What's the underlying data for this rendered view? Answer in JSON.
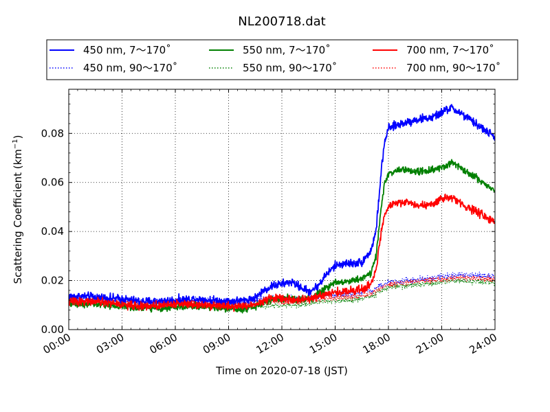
{
  "chart_data": {
    "type": "line",
    "title": "NL200718.dat",
    "xlabel": "Time on 2020-07-18 (JST)",
    "ylabel_main": "Scattering Coefficient (km",
    "ylabel_sup": "−1",
    "ylabel_close": ")",
    "x_unit": "hour",
    "xlim": [
      0,
      24
    ],
    "ylim": [
      0.0,
      0.098
    ],
    "x_ticks": [
      0,
      3,
      6,
      9,
      12,
      15,
      18,
      21,
      24
    ],
    "x_tick_labels": [
      "00:00",
      "03:00",
      "06:00",
      "09:00",
      "12:00",
      "15:00",
      "18:00",
      "21:00",
      "24:00"
    ],
    "y_ticks": [
      0.0,
      0.02,
      0.04,
      0.06,
      0.08
    ],
    "y_tick_labels": [
      "0.00",
      "0.02",
      "0.04",
      "0.06",
      "0.08"
    ],
    "grid": true,
    "legend_position": "top",
    "series": [
      {
        "name": "450 nm, 7～170˚",
        "color": "#0000ff",
        "style": "solid",
        "noise": 0.0016,
        "x": [
          0,
          1,
          2,
          3,
          4,
          5,
          6,
          7,
          8,
          9,
          10,
          10.5,
          11,
          11.5,
          12,
          12.5,
          13,
          13.5,
          14,
          14.5,
          15,
          15.5,
          16,
          16.5,
          17,
          17.3,
          17.6,
          17.8,
          18,
          18.5,
          19,
          19.5,
          20,
          20.5,
          21,
          21.5,
          22,
          22.5,
          23,
          23.5,
          24
        ],
        "y": [
          0.0135,
          0.0135,
          0.013,
          0.0125,
          0.0115,
          0.0115,
          0.012,
          0.0125,
          0.012,
          0.0115,
          0.012,
          0.013,
          0.016,
          0.018,
          0.0185,
          0.0195,
          0.0175,
          0.0155,
          0.0175,
          0.0225,
          0.026,
          0.027,
          0.027,
          0.0275,
          0.032,
          0.04,
          0.065,
          0.077,
          0.082,
          0.0835,
          0.0845,
          0.0855,
          0.086,
          0.0865,
          0.0885,
          0.0905,
          0.0885,
          0.086,
          0.0835,
          0.081,
          0.0785
        ]
      },
      {
        "name": "550 nm, 7～170˚",
        "color": "#008000",
        "style": "solid",
        "noise": 0.0013,
        "x": [
          0,
          1,
          2,
          3,
          4,
          5,
          6,
          7,
          8,
          9,
          10,
          10.5,
          11,
          11.5,
          12,
          12.5,
          13,
          13.5,
          14,
          14.5,
          15,
          15.5,
          16,
          16.5,
          17,
          17.3,
          17.6,
          17.8,
          18,
          18.5,
          19,
          19.5,
          20,
          20.5,
          21,
          21.5,
          22,
          22.5,
          23,
          23.5,
          24
        ],
        "y": [
          0.0105,
          0.0105,
          0.01,
          0.0095,
          0.0088,
          0.0088,
          0.0092,
          0.0095,
          0.0092,
          0.0085,
          0.0085,
          0.0095,
          0.011,
          0.0125,
          0.0125,
          0.013,
          0.0125,
          0.0125,
          0.0145,
          0.017,
          0.0195,
          0.0195,
          0.02,
          0.021,
          0.023,
          0.03,
          0.05,
          0.06,
          0.0635,
          0.065,
          0.065,
          0.0645,
          0.0645,
          0.065,
          0.066,
          0.068,
          0.0665,
          0.064,
          0.0615,
          0.059,
          0.0565
        ]
      },
      {
        "name": "700 nm, 7～170˚",
        "color": "#ff0000",
        "style": "solid",
        "noise": 0.0015,
        "x": [
          0,
          1,
          2,
          3,
          4,
          5,
          6,
          7,
          8,
          9,
          10,
          10.5,
          11,
          11.5,
          12,
          12.5,
          13,
          13.5,
          14,
          14.5,
          15,
          15.5,
          16,
          16.5,
          17,
          17.3,
          17.6,
          17.8,
          18,
          18.5,
          19,
          19.5,
          20,
          20.5,
          21,
          21.5,
          22,
          22.5,
          23,
          23.5,
          24
        ],
        "y": [
          0.0115,
          0.0115,
          0.011,
          0.0102,
          0.0095,
          0.0098,
          0.0105,
          0.0105,
          0.01,
          0.0095,
          0.0095,
          0.0105,
          0.012,
          0.013,
          0.0125,
          0.0125,
          0.0118,
          0.0125,
          0.0135,
          0.0145,
          0.015,
          0.0155,
          0.016,
          0.0165,
          0.018,
          0.024,
          0.04,
          0.048,
          0.0505,
          0.0515,
          0.052,
          0.051,
          0.0505,
          0.051,
          0.053,
          0.0545,
          0.052,
          0.0495,
          0.048,
          0.0455,
          0.0435
        ]
      },
      {
        "name": "450 nm, 90～170˚",
        "color": "#0000ff",
        "style": "dotted",
        "noise": 0.0012,
        "x": [
          0,
          2,
          4,
          6,
          8,
          10,
          11,
          12,
          13,
          14,
          15,
          16,
          17,
          18,
          19,
          20,
          21,
          22,
          23,
          24
        ],
        "y": [
          0.0125,
          0.0125,
          0.0115,
          0.012,
          0.012,
          0.0115,
          0.0125,
          0.0125,
          0.0125,
          0.0135,
          0.014,
          0.0145,
          0.0155,
          0.0195,
          0.02,
          0.0205,
          0.0215,
          0.0225,
          0.022,
          0.0215
        ]
      },
      {
        "name": "550 nm, 90～170˚",
        "color": "#008000",
        "style": "dotted",
        "noise": 0.0011,
        "x": [
          0,
          2,
          4,
          6,
          8,
          10,
          11,
          12,
          13,
          14,
          15,
          16,
          17,
          18,
          19,
          20,
          21,
          22,
          23,
          24
        ],
        "y": [
          0.0105,
          0.0105,
          0.0095,
          0.0095,
          0.0092,
          0.009,
          0.0098,
          0.0098,
          0.01,
          0.0112,
          0.0118,
          0.0122,
          0.0135,
          0.0172,
          0.018,
          0.0185,
          0.0192,
          0.02,
          0.0195,
          0.0192
        ]
      },
      {
        "name": "700 nm, 90～170˚",
        "color": "#ff0000",
        "style": "dotted",
        "noise": 0.0011,
        "x": [
          0,
          2,
          4,
          6,
          8,
          10,
          11,
          12,
          13,
          14,
          15,
          16,
          17,
          18,
          19,
          20,
          21,
          22,
          23,
          24
        ],
        "y": [
          0.0115,
          0.0115,
          0.0108,
          0.011,
          0.0108,
          0.0105,
          0.0112,
          0.0112,
          0.0115,
          0.0125,
          0.013,
          0.0135,
          0.0145,
          0.0185,
          0.0192,
          0.0198,
          0.0205,
          0.0212,
          0.0208,
          0.0205
        ]
      }
    ]
  }
}
